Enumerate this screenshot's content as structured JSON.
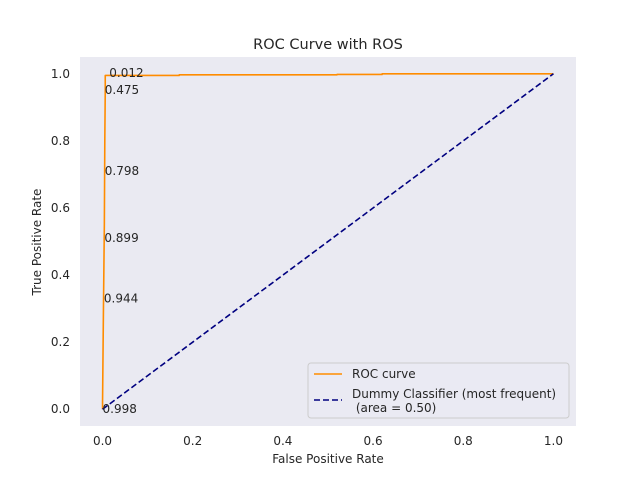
{
  "chart_data": {
    "type": "line",
    "title": "ROC Curve with ROS",
    "xlabel": "False Positive Rate",
    "ylabel": "True Positive Rate",
    "xlim": [
      -0.05,
      1.05
    ],
    "ylim": [
      -0.05,
      1.05
    ],
    "grid": false,
    "background": "#eaeaf2",
    "xticks": [
      0.0,
      0.2,
      0.4,
      0.6,
      0.8,
      1.0
    ],
    "yticks": [
      0.0,
      0.2,
      0.4,
      0.6,
      0.8,
      1.0
    ],
    "xtick_labels": [
      "0.0",
      "0.2",
      "0.4",
      "0.6",
      "0.8",
      "1.0"
    ],
    "ytick_labels": [
      "0.0",
      "0.2",
      "0.4",
      "0.6",
      "0.8",
      "1.0"
    ],
    "legend_position": "lower-right",
    "series": [
      {
        "name": "ROC curve",
        "color": "#ff8c00",
        "style": "solid",
        "x": [
          0.0,
          0.0,
          0.002,
          0.004,
          0.005,
          0.006,
          0.006,
          0.17,
          0.17,
          0.52,
          0.52,
          0.62,
          0.62,
          1.0
        ],
        "y": [
          0.0,
          0.02,
          0.3,
          0.55,
          0.8,
          0.95,
          0.995,
          0.995,
          0.997,
          0.997,
          0.998,
          0.998,
          1.0,
          1.0
        ]
      },
      {
        "name": "Dummy Classifier (most frequent)\n (area = 0.50)",
        "color": "#000080",
        "style": "dashed",
        "x": [
          0.0,
          1.0
        ],
        "y": [
          0.0,
          1.0
        ]
      }
    ],
    "annotations": [
      {
        "text": "0.012",
        "x": 0.015,
        "y": 1.003
      },
      {
        "text": "0.475",
        "x": 0.005,
        "y": 0.952
      },
      {
        "text": "0.798",
        "x": 0.005,
        "y": 0.71
      },
      {
        "text": "0.899",
        "x": 0.004,
        "y": 0.51
      },
      {
        "text": "0.944",
        "x": 0.003,
        "y": 0.33
      },
      {
        "text": "0.998",
        "x": 0.0,
        "y": 0.0
      }
    ]
  }
}
